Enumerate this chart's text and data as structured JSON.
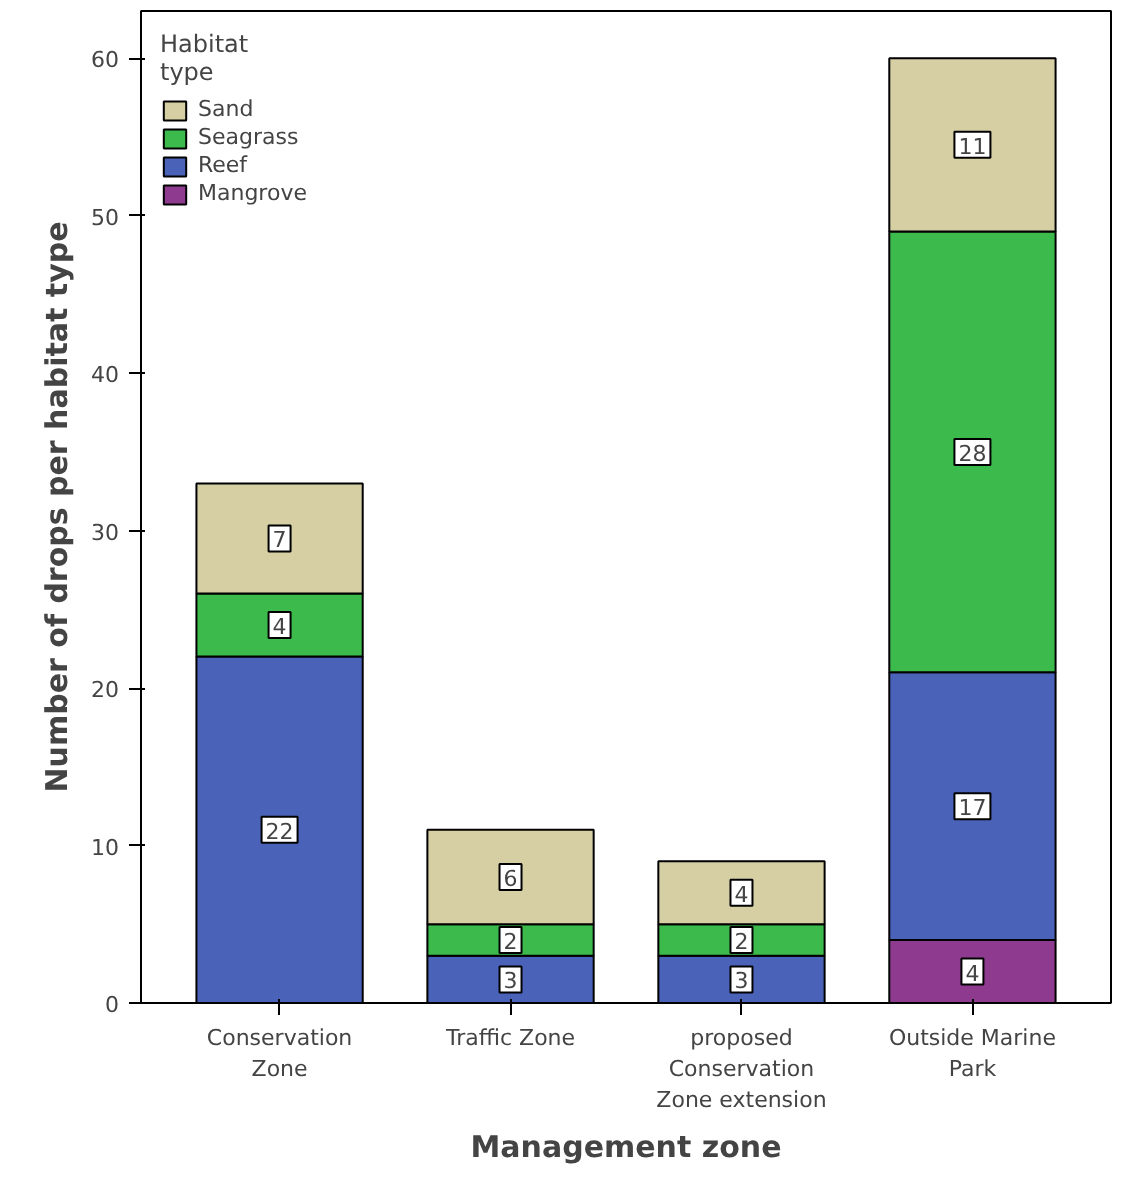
{
  "chart_data": {
    "type": "bar",
    "stacked": true,
    "xlabel": "Management zone",
    "ylabel": "Number of drops per habitat type",
    "legend_title": "Habitat type",
    "legend": "top left",
    "grid": false,
    "data_labels": true,
    "categories": [
      "Conservation Zone",
      "Traffic Zone",
      "proposed Conservation Zone extension",
      "Outside Marine Park"
    ],
    "ylim": [
      0,
      63
    ],
    "yticks": [
      0,
      10,
      20,
      30,
      40,
      50,
      60
    ],
    "series": [
      {
        "name": "Mangrove",
        "color": "#8e3a8f",
        "values": [
          null,
          null,
          null,
          4
        ]
      },
      {
        "name": "Reef",
        "color": "#4a63b9",
        "values": [
          22,
          3,
          3,
          17
        ]
      },
      {
        "name": "Seagrass",
        "color": "#3dba4c",
        "values": [
          4,
          2,
          2,
          28
        ]
      },
      {
        "name": "Sand",
        "color": "#d5cfa3",
        "values": [
          7,
          6,
          4,
          11
        ]
      }
    ]
  }
}
